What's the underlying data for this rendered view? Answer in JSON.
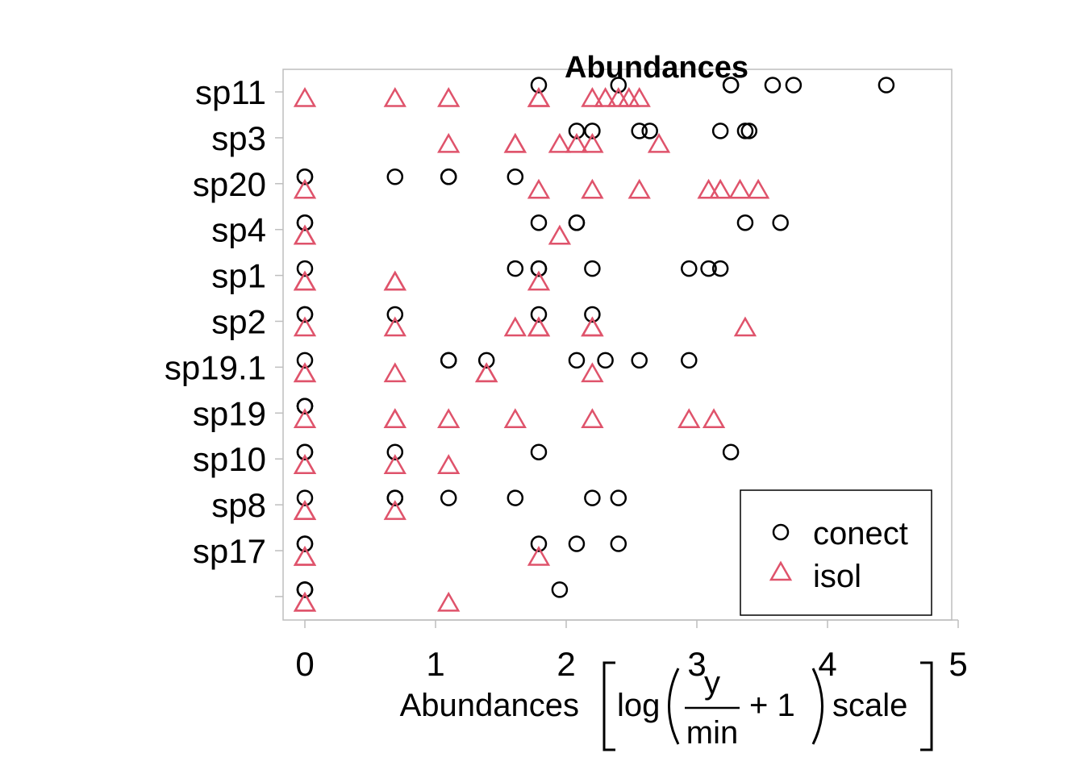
{
  "chart_data": {
    "type": "scatter",
    "title": "Abundances",
    "xlabel": {
      "prefix": "Abundances",
      "log": "log",
      "numerator": "y",
      "denominator": "min",
      "plus_one": "+ 1",
      "suffix": "scale"
    },
    "xlim": [
      0,
      5
    ],
    "xticks": [
      "0",
      "1",
      "2",
      "3",
      "4",
      "5"
    ],
    "xtick_values": [
      0,
      1,
      2,
      3,
      4,
      5
    ],
    "rows": [
      "sp11",
      "sp3",
      "sp20",
      "sp4",
      "sp1",
      "sp2",
      "sp19.1",
      "sp19",
      "sp10",
      "sp8",
      "sp17",
      ""
    ],
    "legend": {
      "position": "bottom-right",
      "items": [
        "conect",
        "isol"
      ]
    },
    "colors": {
      "conect": "#000000",
      "isol": "#DF536B",
      "axis": "#BEBEBE"
    },
    "series": [
      {
        "name": "conect",
        "marker": "circle",
        "points": [
          [
            1.79,
            0
          ],
          [
            2.4,
            0
          ],
          [
            3.26,
            0
          ],
          [
            3.26,
            0
          ],
          [
            3.58,
            0
          ],
          [
            3.74,
            0
          ],
          [
            4.45,
            0
          ],
          [
            2.08,
            1
          ],
          [
            2.2,
            1
          ],
          [
            2.56,
            1
          ],
          [
            2.64,
            1
          ],
          [
            3.18,
            1
          ],
          [
            3.37,
            1
          ],
          [
            3.4,
            1
          ],
          [
            0,
            2
          ],
          [
            0,
            2
          ],
          [
            0.69,
            2
          ],
          [
            1.1,
            2
          ],
          [
            1.1,
            2
          ],
          [
            1.61,
            2
          ],
          [
            0,
            3
          ],
          [
            0,
            3
          ],
          [
            1.79,
            3
          ],
          [
            2.08,
            3
          ],
          [
            2.08,
            3
          ],
          [
            3.37,
            3
          ],
          [
            3.64,
            3
          ],
          [
            0,
            4
          ],
          [
            1.61,
            4
          ],
          [
            1.79,
            4
          ],
          [
            1.79,
            4
          ],
          [
            2.2,
            4
          ],
          [
            2.94,
            4
          ],
          [
            3.09,
            4
          ],
          [
            3.18,
            4
          ],
          [
            0,
            5
          ],
          [
            0,
            5
          ],
          [
            0.69,
            5
          ],
          [
            1.79,
            5
          ],
          [
            2.2,
            5
          ],
          [
            0,
            6
          ],
          [
            1.1,
            6
          ],
          [
            1.1,
            6
          ],
          [
            1.39,
            6
          ],
          [
            2.08,
            6
          ],
          [
            2.3,
            6
          ],
          [
            2.56,
            6
          ],
          [
            2.94,
            6
          ],
          [
            0,
            7
          ],
          [
            0,
            7
          ],
          [
            0,
            7
          ],
          [
            0,
            8
          ],
          [
            0,
            8
          ],
          [
            0.69,
            8
          ],
          [
            1.79,
            8
          ],
          [
            3.26,
            8
          ],
          [
            0,
            9
          ],
          [
            0.69,
            9
          ],
          [
            0.69,
            9
          ],
          [
            1.1,
            9
          ],
          [
            1.61,
            9
          ],
          [
            2.2,
            9
          ],
          [
            2.4,
            9
          ],
          [
            0,
            10
          ],
          [
            0,
            10
          ],
          [
            1.79,
            10
          ],
          [
            2.08,
            10
          ],
          [
            2.4,
            10
          ],
          [
            0,
            11
          ],
          [
            0,
            11
          ],
          [
            0,
            11
          ],
          [
            1.95,
            11
          ]
        ]
      },
      {
        "name": "isol",
        "marker": "triangle",
        "points": [
          [
            0,
            0
          ],
          [
            0.69,
            0
          ],
          [
            1.1,
            0
          ],
          [
            1.79,
            0
          ],
          [
            1.79,
            0
          ],
          [
            2.2,
            0
          ],
          [
            2.3,
            0
          ],
          [
            2.4,
            0
          ],
          [
            2.48,
            0
          ],
          [
            2.56,
            0
          ],
          [
            1.1,
            1
          ],
          [
            1.61,
            1
          ],
          [
            1.61,
            1
          ],
          [
            1.95,
            1
          ],
          [
            2.08,
            1
          ],
          [
            2.2,
            1
          ],
          [
            2.71,
            1
          ],
          [
            0,
            2
          ],
          [
            1.79,
            2
          ],
          [
            2.2,
            2
          ],
          [
            2.56,
            2
          ],
          [
            3.09,
            2
          ],
          [
            3.18,
            2
          ],
          [
            3.33,
            2
          ],
          [
            3.47,
            2
          ],
          [
            0,
            3
          ],
          [
            0,
            3
          ],
          [
            0,
            3
          ],
          [
            1.95,
            3
          ],
          [
            0,
            4
          ],
          [
            0,
            4
          ],
          [
            0.69,
            4
          ],
          [
            0.69,
            4
          ],
          [
            1.79,
            4
          ],
          [
            0,
            5
          ],
          [
            0.69,
            5
          ],
          [
            1.61,
            5
          ],
          [
            1.79,
            5
          ],
          [
            1.79,
            5
          ],
          [
            2.2,
            5
          ],
          [
            2.2,
            5
          ],
          [
            3.37,
            5
          ],
          [
            0,
            6
          ],
          [
            0,
            6
          ],
          [
            0.69,
            6
          ],
          [
            1.39,
            6
          ],
          [
            1.39,
            6
          ],
          [
            2.2,
            6
          ],
          [
            0,
            7
          ],
          [
            0.69,
            7
          ],
          [
            0.69,
            7
          ],
          [
            1.1,
            7
          ],
          [
            1.61,
            7
          ],
          [
            2.2,
            7
          ],
          [
            2.94,
            7
          ],
          [
            3.13,
            7
          ],
          [
            0,
            8
          ],
          [
            0,
            8
          ],
          [
            0.69,
            8
          ],
          [
            1.1,
            8
          ],
          [
            0,
            9
          ],
          [
            0,
            9
          ],
          [
            0.69,
            9
          ],
          [
            0,
            10
          ],
          [
            0,
            10
          ],
          [
            1.79,
            10
          ],
          [
            0,
            11
          ],
          [
            0,
            11
          ],
          [
            1.1,
            11
          ]
        ]
      }
    ]
  }
}
